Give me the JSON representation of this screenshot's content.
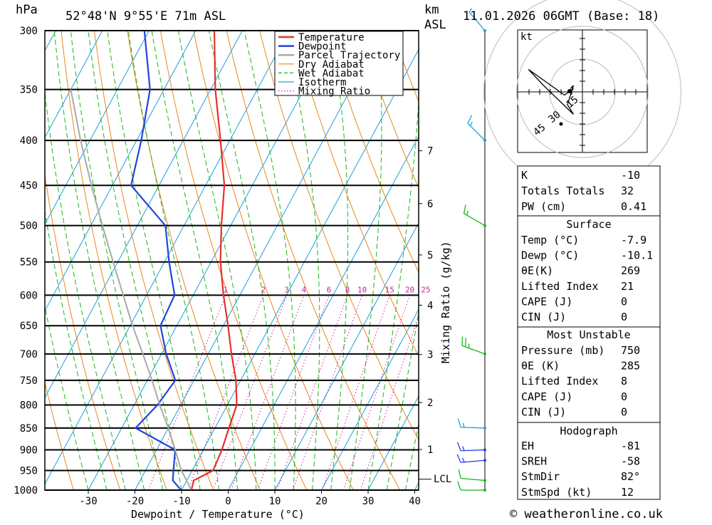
{
  "header": {
    "units_p": "hPa",
    "location": "52°48'N  9°55'E  71m  ASL",
    "units_km": "km",
    "units_asl": "ASL",
    "datetime": "11.01.2026  06GMT  (Base: 18)"
  },
  "legend": [
    {
      "label": "Temperature",
      "color": "#e8302c",
      "style": "solid"
    },
    {
      "label": "Dewpoint",
      "color": "#2244dd",
      "style": "solid"
    },
    {
      "label": "Parcel Trajectory",
      "color": "#aaaaaa",
      "style": "solid"
    },
    {
      "label": "Dry Adiabat",
      "color": "#e8881c",
      "style": "solid"
    },
    {
      "label": "Wet Adiabat",
      "color": "#18b818",
      "style": "dashed"
    },
    {
      "label": "Isotherm",
      "color": "#1aa0e0",
      "style": "solid"
    },
    {
      "label": "Mixing Ratio",
      "color": "#cc1f9e",
      "style": "dotted"
    }
  ],
  "axis": {
    "xlabel": "Dewpoint / Temperature (°C)",
    "mixing_label": "Mixing Ratio (g/kg)",
    "lcl_label": "LCL",
    "kt_label": "kt",
    "copyright": "© weatheronline.co.uk"
  },
  "chart_data": {
    "type": "line",
    "title": "",
    "xlabel": "Dewpoint / Temperature (°C)",
    "ylabel": "hPa",
    "xlim": [
      -40,
      40
    ],
    "ylim": [
      1000,
      300
    ],
    "y_scale": "log",
    "skew": true,
    "pressure_ticks": [
      300,
      350,
      400,
      450,
      500,
      550,
      600,
      650,
      700,
      750,
      800,
      850,
      900,
      950,
      1000
    ],
    "temperature_ticks": [
      -30,
      -20,
      -10,
      0,
      10,
      20,
      30,
      40
    ],
    "km_ticks": [
      {
        "km": "1",
        "p": 899
      },
      {
        "km": "2",
        "p": 795
      },
      {
        "km": "3",
        "p": 701
      },
      {
        "km": "4",
        "p": 616
      },
      {
        "km": "5",
        "p": 540
      },
      {
        "km": "6",
        "p": 472
      },
      {
        "km": "7",
        "p": 411
      }
    ],
    "lcl_p": 972,
    "mixing_ratio_labels": [
      "1",
      "2",
      "3",
      "4",
      "6",
      "8",
      "10",
      "15",
      "20",
      "25"
    ],
    "series": [
      {
        "name": "Temperature",
        "color": "#e8302c",
        "points": [
          [
            1000,
            -7.9
          ],
          [
            975,
            -8.5
          ],
          [
            950,
            -5.5
          ],
          [
            900,
            -6
          ],
          [
            850,
            -7
          ],
          [
            800,
            -8
          ],
          [
            750,
            -11
          ],
          [
            700,
            -15
          ],
          [
            650,
            -19
          ],
          [
            600,
            -23.5
          ],
          [
            550,
            -28
          ],
          [
            500,
            -32
          ],
          [
            450,
            -36
          ],
          [
            400,
            -42
          ],
          [
            350,
            -49
          ],
          [
            300,
            -56
          ]
        ]
      },
      {
        "name": "Dewpoint",
        "color": "#2244dd",
        "points": [
          [
            1000,
            -10.1
          ],
          [
            975,
            -13
          ],
          [
            950,
            -14
          ],
          [
            900,
            -16
          ],
          [
            850,
            -27
          ],
          [
            800,
            -25
          ],
          [
            750,
            -24
          ],
          [
            700,
            -29
          ],
          [
            650,
            -33.5
          ],
          [
            600,
            -34
          ],
          [
            550,
            -39
          ],
          [
            500,
            -44
          ],
          [
            450,
            -56
          ],
          [
            400,
            -59
          ],
          [
            350,
            -63
          ],
          [
            300,
            -71
          ]
        ]
      },
      {
        "name": "Parcel Trajectory",
        "color": "#aaaaaa",
        "points": [
          [
            1000,
            -7.9
          ],
          [
            972,
            -10.3
          ],
          [
            950,
            -12.3
          ],
          [
            900,
            -16
          ],
          [
            850,
            -20
          ],
          [
            800,
            -24.5
          ],
          [
            750,
            -29
          ],
          [
            700,
            -34
          ],
          [
            650,
            -39.5
          ],
          [
            600,
            -45
          ],
          [
            550,
            -51
          ],
          [
            500,
            -57.5
          ],
          [
            450,
            -64.5
          ],
          [
            400,
            -72
          ],
          [
            350,
            -80
          ]
        ]
      }
    ]
  },
  "hodograph": {
    "ring_labels": [
      "15",
      "30",
      "45"
    ],
    "points": [
      [
        -4,
        0
      ],
      [
        -3,
        -1
      ],
      [
        -6,
        1
      ],
      [
        -18,
        -7
      ],
      [
        -13,
        -2
      ],
      [
        -3,
        7
      ],
      [
        -5,
        4
      ],
      [
        -3,
        -2
      ],
      [
        -4,
        -1
      ]
    ]
  },
  "wind_profile": [
    {
      "p": 1000,
      "dir": 270,
      "spd": 12
    },
    {
      "p": 975,
      "dir": 275,
      "spd": 12
    },
    {
      "p": 925,
      "dir": 265,
      "spd": 15
    },
    {
      "p": 900,
      "dir": 268,
      "spd": 15
    },
    {
      "p": 850,
      "dir": 272,
      "spd": 15
    },
    {
      "p": 700,
      "dir": 290,
      "spd": 25
    },
    {
      "p": 500,
      "dir": 300,
      "spd": 15
    },
    {
      "p": 400,
      "dir": 315,
      "spd": 15
    },
    {
      "p": 300,
      "dir": 320,
      "spd": 5
    }
  ],
  "indices": {
    "top": [
      {
        "label": "K",
        "value": "-10"
      },
      {
        "label": "Totals Totals",
        "value": "32"
      },
      {
        "label": "PW (cm)",
        "value": "0.41"
      }
    ],
    "surface_title": "Surface",
    "surface": [
      {
        "label": "Temp (°C)",
        "value": "-7.9"
      },
      {
        "label": "Dewp (°C)",
        "value": "-10.1"
      },
      {
        "label": "θE(K)",
        "value": "269"
      },
      {
        "label": "Lifted Index",
        "value": "21"
      },
      {
        "label": "CAPE (J)",
        "value": "0"
      },
      {
        "label": "CIN (J)",
        "value": "0"
      }
    ],
    "mu_title": "Most Unstable",
    "mu": [
      {
        "label": "Pressure (mb)",
        "value": "750"
      },
      {
        "label": "θE (K)",
        "value": "285"
      },
      {
        "label": "Lifted Index",
        "value": "8"
      },
      {
        "label": "CAPE (J)",
        "value": "0"
      },
      {
        "label": "CIN (J)",
        "value": "0"
      }
    ],
    "hodo_title": "Hodograph",
    "hodo": [
      {
        "label": "EH",
        "value": "-81"
      },
      {
        "label": "SREH",
        "value": "-58"
      },
      {
        "label": "StmDir",
        "value": "82°"
      },
      {
        "label": "StmSpd (kt)",
        "value": "12"
      }
    ]
  }
}
